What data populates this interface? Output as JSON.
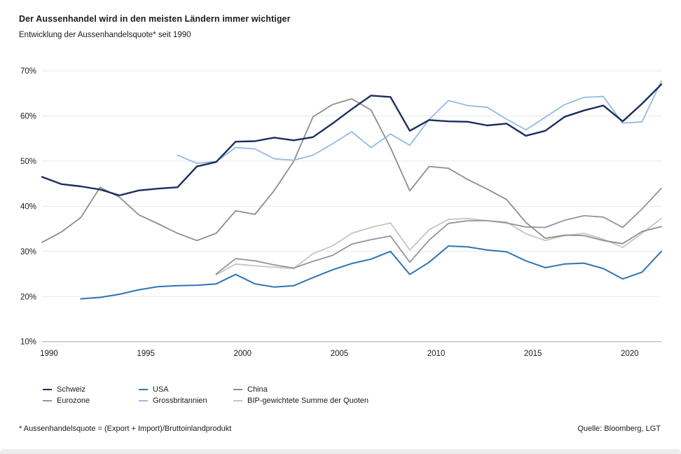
{
  "header": {
    "title": "Der Aussenhandel wird in den meisten Ländern immer wichtiger",
    "subtitle": "Entwicklung der Aussenhandelsquote* seit 1990"
  },
  "chart_data": {
    "type": "line",
    "x_label_years": [
      1990,
      1995,
      2000,
      2005,
      2010,
      2015,
      2020
    ],
    "y_ticks": [
      "70%",
      "60%",
      "50%",
      "40%",
      "30%",
      "20%",
      "10%"
    ],
    "y_tick_values": [
      70,
      60,
      50,
      40,
      30,
      20,
      10
    ],
    "ylim": [
      10,
      70
    ],
    "xlim": [
      1990,
      2022
    ],
    "grid": "horizontal",
    "legend_position": "bottom",
    "x": [
      1990,
      1991,
      1992,
      1993,
      1994,
      1995,
      1996,
      1997,
      1998,
      1999,
      2000,
      2001,
      2002,
      2003,
      2004,
      2005,
      2006,
      2007,
      2008,
      2009,
      2010,
      2011,
      2012,
      2013,
      2014,
      2015,
      2016,
      2017,
      2018,
      2019,
      2020,
      2021,
      2022
    ],
    "series": [
      {
        "name": "Schweiz",
        "color": "#1c2d5e",
        "width": 2.4,
        "values": [
          46.5,
          44.9,
          44.4,
          43.7,
          42.4,
          43.5,
          43.9,
          44.2,
          48.8,
          49.8,
          54.3,
          54.4,
          55.2,
          54.6,
          55.3,
          58.3,
          61.5,
          64.5,
          64.2,
          56.7,
          59.1,
          58.8,
          58.7,
          57.9,
          58.3,
          55.6,
          56.7,
          59.8,
          61.2,
          62.3,
          58.8,
          62.7,
          67.0
        ]
      },
      {
        "name": "USA",
        "color": "#2e74b5",
        "width": 2.0,
        "values": [
          null,
          null,
          19.5,
          19.8,
          20.5,
          21.5,
          22.2,
          22.4,
          22.5,
          22.8,
          24.9,
          22.8,
          22.1,
          22.4,
          24.2,
          25.9,
          27.3,
          28.3,
          30.0,
          24.9,
          27.6,
          31.2,
          31.0,
          30.3,
          29.9,
          27.9,
          26.4,
          27.2,
          27.4,
          26.2,
          23.9,
          25.4,
          30.0
        ]
      },
      {
        "name": "China",
        "color": "#8f8e86",
        "width": 1.8,
        "values": [
          32.0,
          34.3,
          37.5,
          44.2,
          42.0,
          38.1,
          36.1,
          34.0,
          32.4,
          34.0,
          39.0,
          38.2,
          43.5,
          49.9,
          59.8,
          62.5,
          63.8,
          61.3,
          53.0,
          43.4,
          48.8,
          48.4,
          45.9,
          43.8,
          41.5,
          36.4,
          32.9,
          33.6,
          33.5,
          32.4,
          31.7,
          34.4,
          35.5
        ]
      },
      {
        "name": "Eurozone",
        "color": "#94939f",
        "width": 1.8,
        "values": [
          null,
          null,
          null,
          null,
          null,
          null,
          null,
          null,
          null,
          25.0,
          28.4,
          27.9,
          27.0,
          26.3,
          27.8,
          29.1,
          31.6,
          32.6,
          33.4,
          27.6,
          32.5,
          36.2,
          36.8,
          36.8,
          36.3,
          35.4,
          35.3,
          36.9,
          37.9,
          37.6,
          35.3,
          39.4,
          44.0
        ]
      },
      {
        "name": "Grossbritannien",
        "color": "#93bbe3",
        "width": 1.8,
        "values": [
          null,
          null,
          null,
          null,
          null,
          null,
          null,
          51.3,
          49.5,
          49.9,
          53.0,
          52.7,
          50.5,
          50.2,
          51.3,
          53.8,
          56.5,
          53.0,
          56.0,
          53.5,
          59.2,
          63.4,
          62.3,
          61.9,
          59.3,
          56.9,
          59.7,
          62.5,
          64.1,
          64.3,
          58.4,
          58.7,
          67.7
        ]
      },
      {
        "name": "BIP-gewichtete Summe der Quoten",
        "color": "#c9c5bf",
        "width": 1.8,
        "values": [
          null,
          null,
          null,
          null,
          null,
          null,
          null,
          null,
          null,
          24.8,
          27.2,
          26.8,
          26.5,
          26.2,
          29.5,
          31.2,
          34.0,
          35.3,
          36.3,
          30.3,
          34.8,
          37.1,
          37.3,
          36.8,
          36.5,
          33.9,
          32.4,
          33.5,
          34.0,
          32.7,
          30.9,
          34.0,
          37.3
        ]
      }
    ]
  },
  "legend": {
    "items": [
      {
        "label": "Schweiz",
        "series": 0
      },
      {
        "label": "Eurozone",
        "series": 3
      },
      {
        "label": "USA",
        "series": 1
      },
      {
        "label": "Grossbritannien",
        "series": 4
      },
      {
        "label": "China",
        "series": 2
      },
      {
        "label": "BIP-gewichtete Summe der Quoten",
        "series": 5
      }
    ]
  },
  "footer": {
    "footnote": "* Aussenhandelsquote = (Export + Import)/Bruttoinlandprodukt",
    "source": "Quelle: Bloomberg, LGT"
  }
}
